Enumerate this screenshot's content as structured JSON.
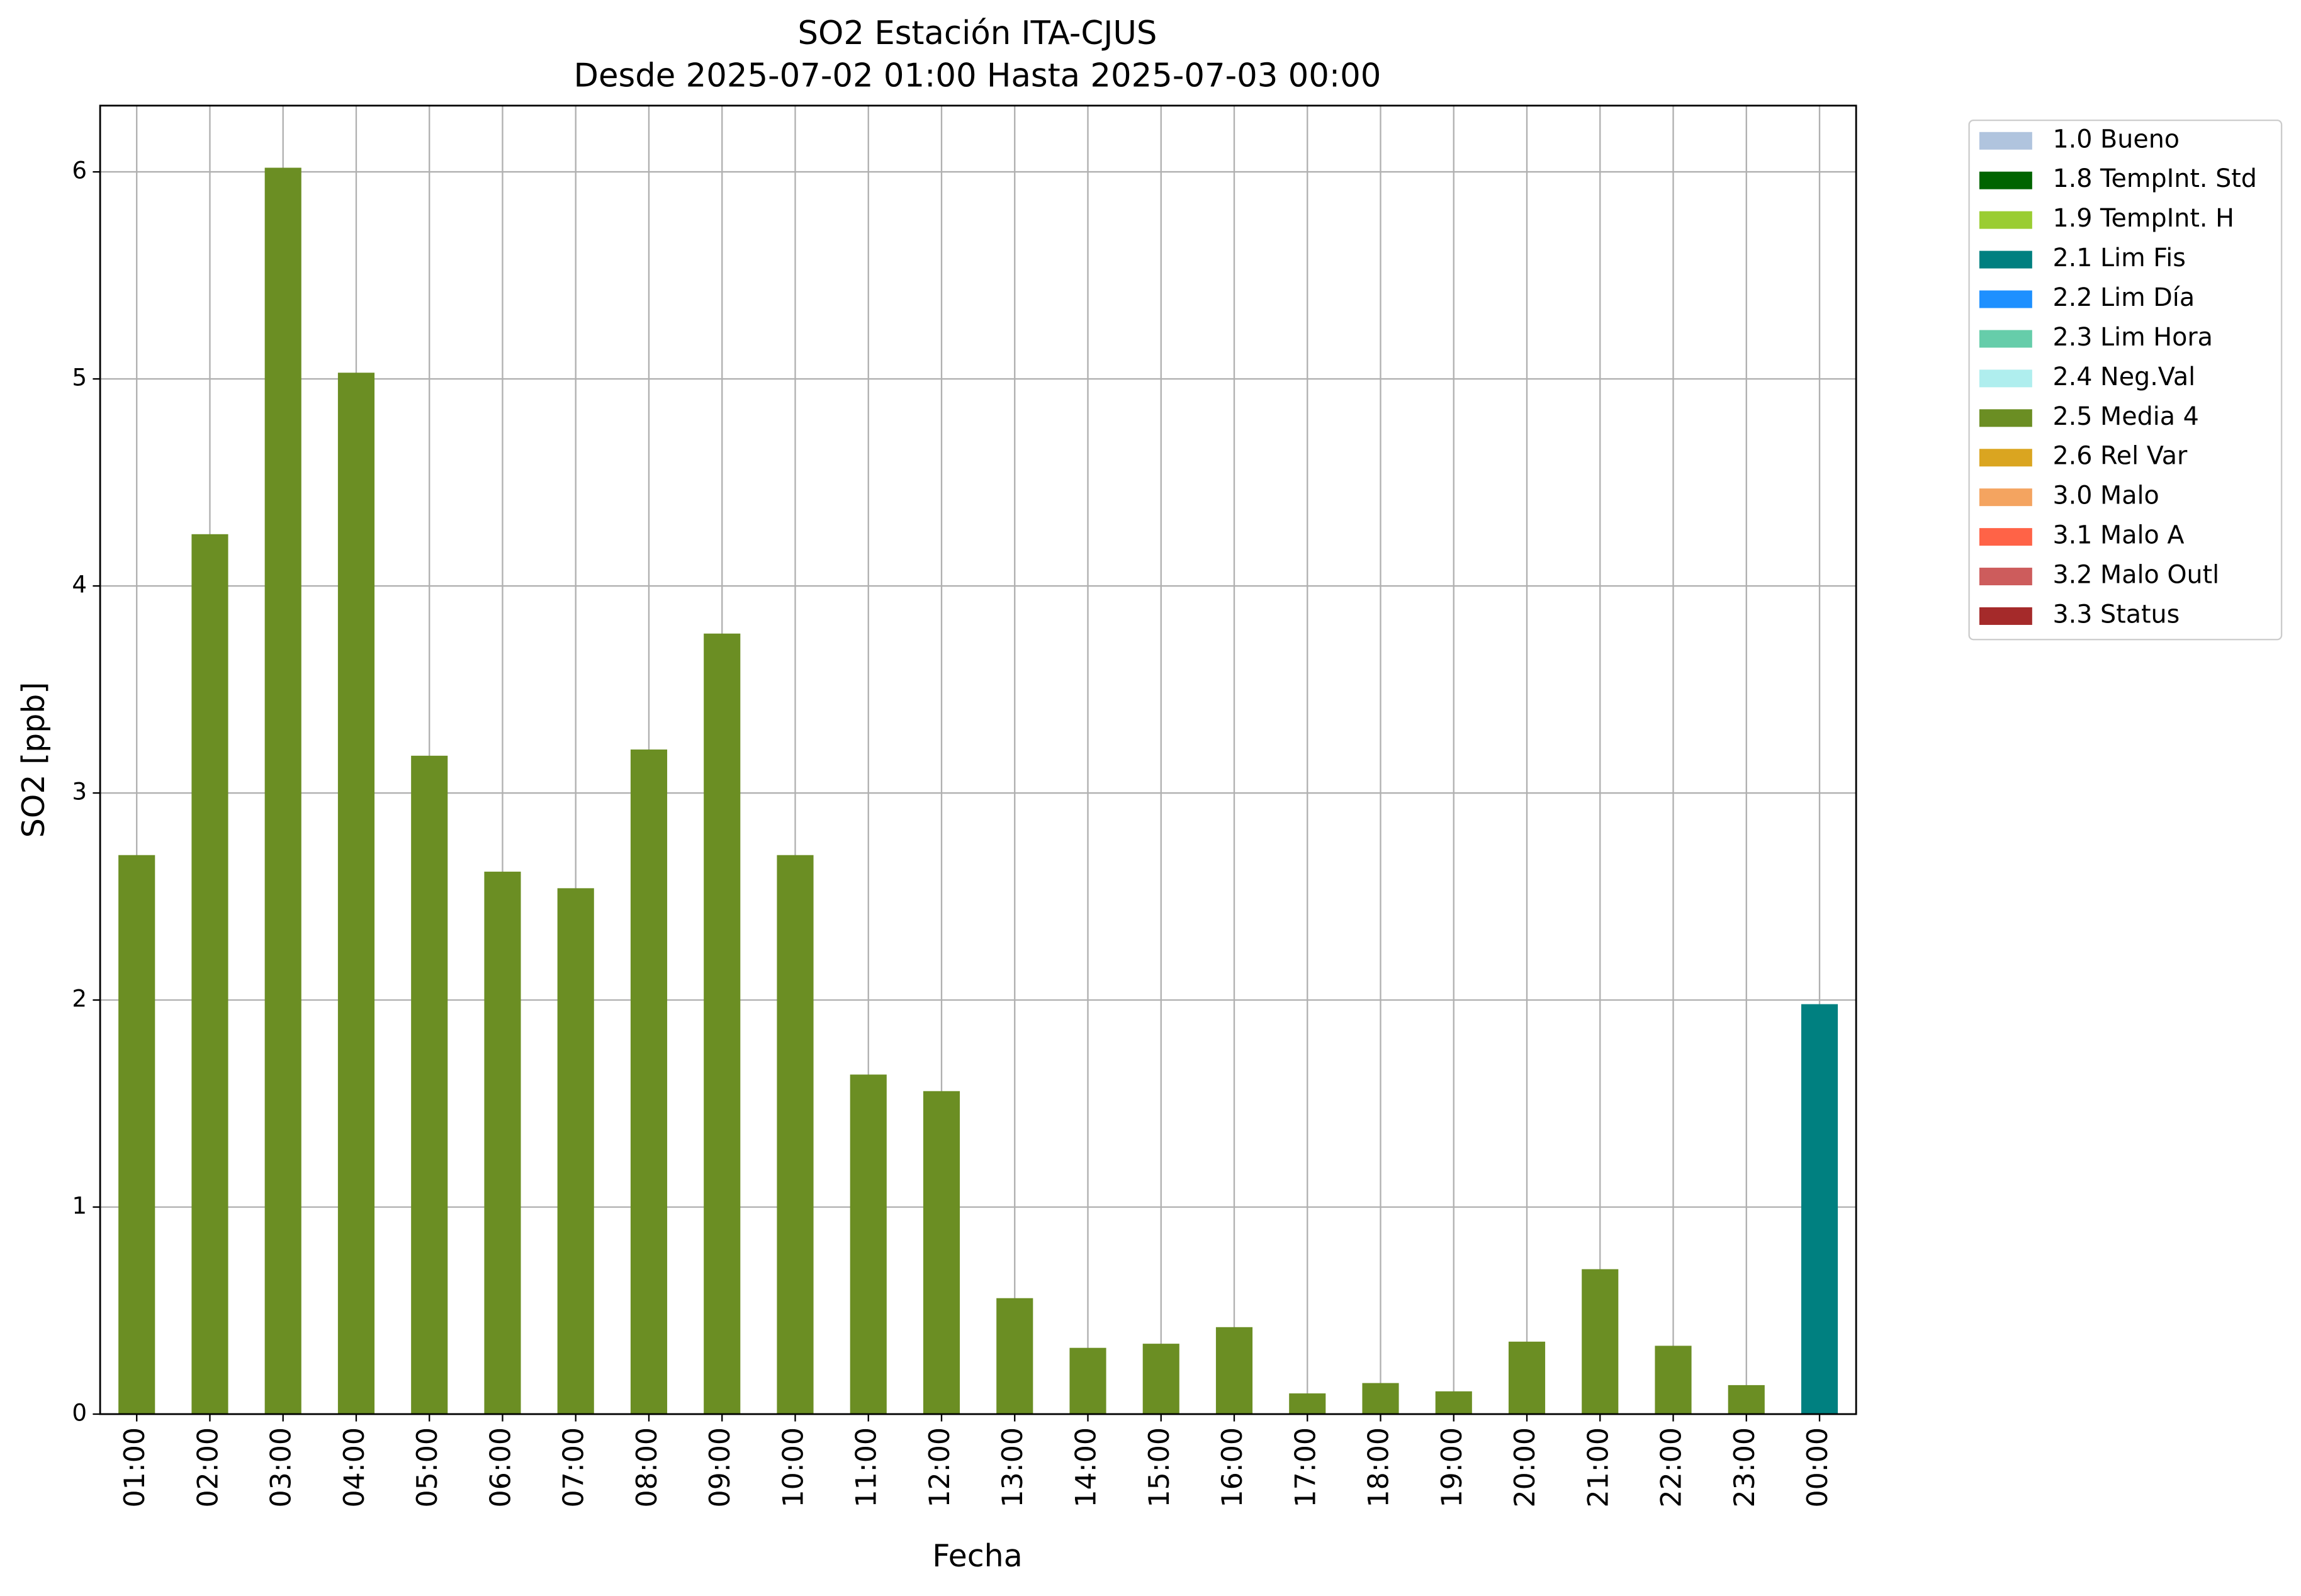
{
  "chart_data": {
    "type": "bar",
    "stacked": true,
    "title": "SO2 Estación ITA-CJUS",
    "subtitle": "Desde 2025-07-02 01:00 Hasta 2025-07-03 00:00",
    "x_label": "Fecha",
    "y_label": "SO2 [ppb]",
    "categories": [
      "01:00",
      "02:00",
      "03:00",
      "04:00",
      "05:00",
      "06:00",
      "07:00",
      "08:00",
      "09:00",
      "10:00",
      "11:00",
      "12:00",
      "13:00",
      "14:00",
      "15:00",
      "16:00",
      "17:00",
      "18:00",
      "19:00",
      "20:00",
      "21:00",
      "22:00",
      "23:00",
      "00:00"
    ],
    "series": [
      {
        "name": "1.0 Bueno",
        "color": "#b0c4de",
        "values": [
          null,
          null,
          null,
          null,
          null,
          null,
          null,
          null,
          null,
          null,
          null,
          null,
          null,
          null,
          null,
          null,
          null,
          null,
          null,
          null,
          null,
          null,
          null,
          null
        ]
      },
      {
        "name": "1.8 TempInt. Std",
        "color": "#006400",
        "values": [
          null,
          null,
          null,
          null,
          null,
          null,
          null,
          null,
          null,
          null,
          null,
          null,
          null,
          null,
          null,
          null,
          null,
          null,
          null,
          null,
          null,
          null,
          null,
          null
        ]
      },
      {
        "name": "1.9 TempInt. H",
        "color": "#9acd32",
        "values": [
          null,
          null,
          null,
          null,
          null,
          null,
          null,
          null,
          null,
          null,
          null,
          null,
          null,
          null,
          null,
          null,
          null,
          null,
          null,
          null,
          null,
          null,
          null,
          null
        ]
      },
      {
        "name": "2.1 Lim Fis",
        "color": "#008080",
        "values": [
          null,
          null,
          null,
          null,
          null,
          null,
          null,
          null,
          null,
          null,
          null,
          null,
          null,
          null,
          null,
          null,
          null,
          null,
          null,
          null,
          null,
          null,
          null,
          1.98
        ]
      },
      {
        "name": "2.2 Lim Día",
        "color": "#1e90ff",
        "values": [
          null,
          null,
          null,
          null,
          null,
          null,
          null,
          null,
          null,
          null,
          null,
          null,
          null,
          null,
          null,
          null,
          null,
          null,
          null,
          null,
          null,
          null,
          null,
          null
        ]
      },
      {
        "name": "2.3 Lim Hora",
        "color": "#66cdaa",
        "values": [
          null,
          null,
          null,
          null,
          null,
          null,
          null,
          null,
          null,
          null,
          null,
          null,
          null,
          null,
          null,
          null,
          null,
          null,
          null,
          null,
          null,
          null,
          null,
          null
        ]
      },
      {
        "name": "2.4 Neg.Val",
        "color": "#afeeee",
        "values": [
          null,
          null,
          null,
          null,
          null,
          null,
          null,
          null,
          null,
          null,
          null,
          null,
          null,
          null,
          null,
          null,
          null,
          null,
          null,
          null,
          null,
          null,
          null,
          null
        ]
      },
      {
        "name": "2.5 Media 4",
        "color": "#6b8e23",
        "values": [
          2.7,
          4.25,
          6.02,
          5.03,
          3.18,
          2.62,
          2.54,
          3.21,
          3.77,
          2.7,
          1.64,
          1.56,
          0.56,
          0.32,
          0.34,
          0.42,
          0.1,
          0.15,
          0.11,
          0.35,
          0.7,
          0.33,
          0.14,
          null
        ]
      },
      {
        "name": "2.6 Rel Var",
        "color": "#daa520",
        "values": [
          null,
          null,
          null,
          null,
          null,
          null,
          null,
          null,
          null,
          null,
          null,
          null,
          null,
          null,
          null,
          null,
          null,
          null,
          null,
          null,
          null,
          null,
          null,
          null
        ]
      },
      {
        "name": "3.0 Malo",
        "color": "#f4a460",
        "values": [
          null,
          null,
          null,
          null,
          null,
          null,
          null,
          null,
          null,
          null,
          null,
          null,
          null,
          null,
          null,
          null,
          null,
          null,
          null,
          null,
          null,
          null,
          null,
          null
        ]
      },
      {
        "name": "3.1 Malo A",
        "color": "#ff6347",
        "values": [
          null,
          null,
          null,
          null,
          null,
          null,
          null,
          null,
          null,
          null,
          null,
          null,
          null,
          null,
          null,
          null,
          null,
          null,
          null,
          null,
          null,
          null,
          null,
          null
        ]
      },
      {
        "name": "3.2 Malo Outl",
        "color": "#cd5c5c",
        "values": [
          null,
          null,
          null,
          null,
          null,
          null,
          null,
          null,
          null,
          null,
          null,
          null,
          null,
          null,
          null,
          null,
          null,
          null,
          null,
          null,
          null,
          null,
          null,
          null
        ]
      },
      {
        "name": "3.3 Status",
        "color": "#a52a2a",
        "values": [
          null,
          null,
          null,
          null,
          null,
          null,
          null,
          null,
          null,
          null,
          null,
          null,
          null,
          null,
          null,
          null,
          null,
          null,
          null,
          null,
          null,
          null,
          null,
          null
        ]
      }
    ],
    "ylim": [
      0,
      6.32
    ],
    "yticks": [
      0,
      1,
      2,
      3,
      4,
      5,
      6
    ],
    "grid": true,
    "legend": "outside-upper-right"
  }
}
